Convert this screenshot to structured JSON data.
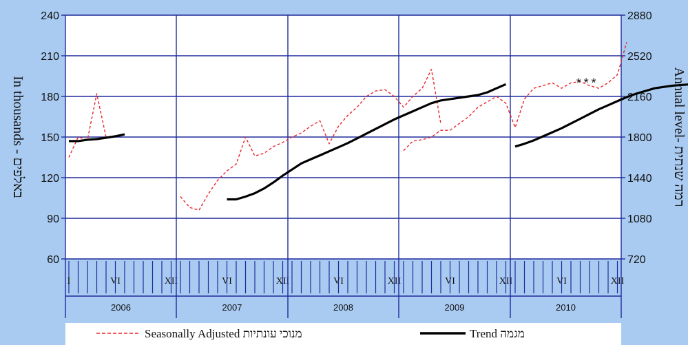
{
  "colors": {
    "background": "#a9cbf1",
    "plot_background": "#ffffff",
    "grid": "#1f2a9c",
    "seasonally_adjusted": "#e8262a",
    "trend": "#000000"
  },
  "chart_data": {
    "type": "line",
    "left_axis": {
      "label": "In thousands - באלפים",
      "ylim": [
        60,
        240
      ],
      "ticks": [
        "240",
        "210",
        "180",
        "150",
        "120",
        "90",
        "60"
      ]
    },
    "right_axis": {
      "label": "Annual level- רמה שנתית",
      "ylim": [
        720,
        2880
      ],
      "ticks": [
        "2880",
        "2520",
        "2160",
        "1800",
        "1440",
        "1080",
        "720"
      ]
    },
    "month_markers": [
      "I",
      "VI",
      "XII",
      "VI",
      "XII",
      "VI",
      "XII",
      "VI",
      "XII",
      "VI",
      "XII"
    ],
    "years": [
      "2006",
      "2007",
      "2008",
      "2009",
      "2010"
    ],
    "annotation": "***",
    "grid": true,
    "series": [
      {
        "name": "Seasonally Adjusted מנוכי עונתיות",
        "style": "dashed",
        "segments": [
          {
            "start_month": 0,
            "values": [
              135,
              150,
              148,
              182,
              150,
              151
            ]
          },
          {
            "start_month": 12,
            "values": [
              106,
              98,
              96,
              108,
              118,
              125,
              130,
              150,
              136,
              138,
              143,
              146,
              150,
              153,
              158,
              162,
              145,
              158,
              166,
              172,
              180,
              184,
              185,
              180,
              172,
              180,
              186,
              200,
              160
            ]
          },
          {
            "start_month": 36,
            "values": [
              140,
              147,
              148,
              150,
              155,
              155,
              160,
              165,
              172,
              176,
              180,
              175,
              157,
              178,
              186,
              188,
              190,
              186,
              190,
              191,
              188,
              186,
              190,
              196,
              220
            ]
          }
        ]
      },
      {
        "name": "Trend מגמה",
        "style": "solid",
        "segments": [
          {
            "start_month": 0,
            "values": [
              147,
              147,
              148,
              148.5,
              149.5,
              150.5,
              152
            ]
          },
          {
            "start_month": 17,
            "values": [
              104,
              104,
              106,
              108.5,
              112,
              116.5,
              121.5,
              126,
              130.5,
              133.5,
              136.5,
              139.5,
              142.5,
              145.5,
              149,
              152.5,
              156,
              159.5,
              163,
              166,
              169,
              172,
              175,
              177,
              178,
              179,
              180,
              181,
              183,
              186,
              189
            ]
          },
          {
            "start_month": 48,
            "values": [
              143,
              145,
              147.5,
              150.5,
              153.5,
              156.5,
              160,
              163.5,
              167,
              170.5,
              173.5,
              176.5,
              179.5,
              182,
              184,
              186,
              187,
              188,
              188.5,
              189,
              189.5,
              189.5
            ]
          }
        ]
      }
    ]
  },
  "legend": {
    "seasonal_label": "Seasonally Adjusted מנוכי עונתיות",
    "trend_label": "Trend מגמה"
  }
}
